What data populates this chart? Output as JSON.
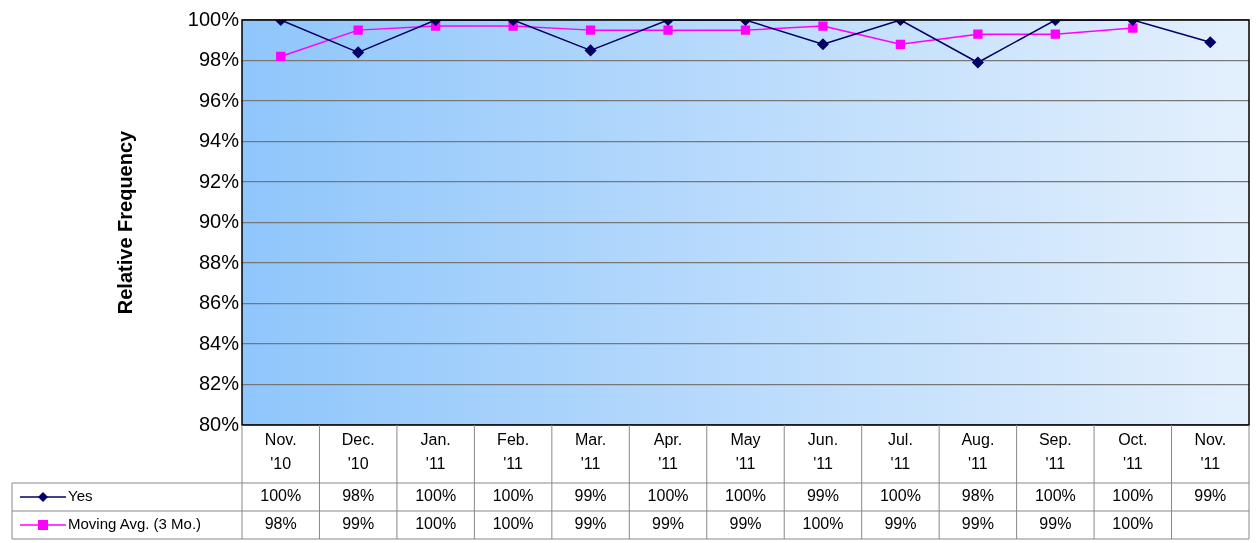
{
  "chart_data": {
    "type": "line",
    "ylabel": "Relative Frequency",
    "categories": [
      "Nov. '10",
      "Dec. '10",
      "Jan. '11",
      "Feb. '11",
      "Mar. '11",
      "Apr. '11",
      "May '11",
      "Jun. '11",
      "Jul. '11",
      "Aug. '11",
      "Sep. '11",
      "Oct. '11",
      "Nov. '11"
    ],
    "series": [
      {
        "name": "Yes",
        "color": "#000066",
        "marker": "diamond",
        "values": [
          100,
          98.4,
          100,
          100,
          98.5,
          100,
          100,
          98.8,
          100,
          97.9,
          100,
          100,
          98.9
        ],
        "value_labels": [
          "100%",
          "98%",
          "100%",
          "100%",
          "99%",
          "100%",
          "100%",
          "99%",
          "100%",
          "98%",
          "100%",
          "100%",
          "99%"
        ]
      },
      {
        "name": "Moving Avg. (3 Mo.)",
        "color": "#ff00ff",
        "marker": "square",
        "values": [
          98.2,
          99.5,
          99.7,
          99.7,
          99.5,
          99.5,
          99.5,
          99.7,
          98.8,
          99.3,
          99.3,
          99.6,
          null
        ],
        "value_labels": [
          "98%",
          "99%",
          "100%",
          "100%",
          "99%",
          "99%",
          "99%",
          "100%",
          "99%",
          "99%",
          "99%",
          "100%",
          null
        ]
      }
    ],
    "ylim": [
      80,
      100
    ],
    "yticks": [
      {
        "value": 80,
        "label": "80%"
      },
      {
        "value": 82,
        "label": "82%"
      },
      {
        "value": 84,
        "label": "84%"
      },
      {
        "value": 86,
        "label": "86%"
      },
      {
        "value": 88,
        "label": "88%"
      },
      {
        "value": 90,
        "label": "90%"
      },
      {
        "value": 92,
        "label": "92%"
      },
      {
        "value": 94,
        "label": "94%"
      },
      {
        "value": 96,
        "label": "96%"
      },
      {
        "value": 98,
        "label": "98%"
      },
      {
        "value": 100,
        "label": "100%"
      }
    ],
    "grid": "y",
    "legend": "bottom",
    "line_style": "solid"
  }
}
